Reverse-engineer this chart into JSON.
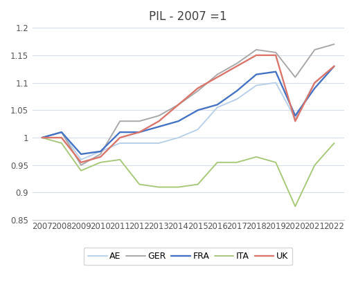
{
  "title": "PIL - 2007 =1",
  "years": [
    2007,
    2008,
    2009,
    2010,
    2011,
    2012,
    2013,
    2014,
    2015,
    2016,
    2017,
    2018,
    2019,
    2020,
    2021,
    2022
  ],
  "series": {
    "AE": {
      "values": [
        1.0,
        1.01,
        0.96,
        0.975,
        0.99,
        0.99,
        0.99,
        1.0,
        1.015,
        1.055,
        1.07,
        1.095,
        1.1,
        1.035,
        1.1,
        1.13
      ],
      "color": "#b8d0ea",
      "linewidth": 1.4,
      "zorder": 2
    },
    "GER": {
      "values": [
        1.0,
        1.01,
        0.95,
        0.97,
        1.03,
        1.03,
        1.04,
        1.06,
        1.085,
        1.115,
        1.135,
        1.16,
        1.155,
        1.11,
        1.16,
        1.17
      ],
      "color": "#a8a8a8",
      "linewidth": 1.4,
      "zorder": 3
    },
    "FRA": {
      "values": [
        1.0,
        1.01,
        0.97,
        0.975,
        1.01,
        1.01,
        1.02,
        1.03,
        1.05,
        1.06,
        1.085,
        1.115,
        1.12,
        1.04,
        1.09,
        1.13
      ],
      "color": "#4472c4",
      "linewidth": 1.7,
      "zorder": 4
    },
    "ITA": {
      "values": [
        1.0,
        0.99,
        0.94,
        0.955,
        0.96,
        0.915,
        0.91,
        0.91,
        0.915,
        0.955,
        0.955,
        0.965,
        0.955,
        0.875,
        0.95,
        0.99
      ],
      "color": "#a8c87a",
      "linewidth": 1.4,
      "zorder": 2
    },
    "UK": {
      "values": [
        1.0,
        1.0,
        0.955,
        0.965,
        1.0,
        1.01,
        1.03,
        1.06,
        1.09,
        1.11,
        1.13,
        1.15,
        1.15,
        1.03,
        1.1,
        1.13
      ],
      "color": "#d9756a",
      "linewidth": 1.7,
      "zorder": 5
    }
  },
  "ylim": [
    0.85,
    1.2
  ],
  "yticks": [
    0.85,
    0.9,
    0.95,
    1.0,
    1.05,
    1.1,
    1.15,
    1.2
  ],
  "ytick_labels": [
    "0.85",
    "0.9",
    "0.95",
    "1",
    "1.05",
    "1.1",
    "1.15",
    "1.2"
  ],
  "background_color": "#ffffff",
  "grid_color": "#d8dce8",
  "title_fontsize": 12,
  "tick_fontsize": 8.5
}
